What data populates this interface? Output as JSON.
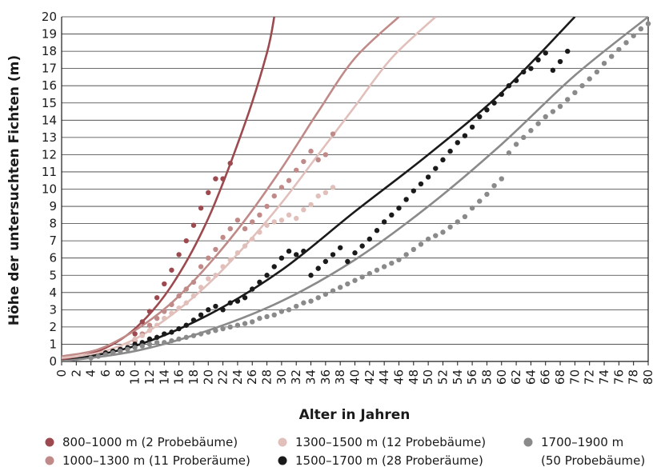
{
  "chart_data": {
    "type": "scatter",
    "xlabel": "Alter in Jahren",
    "ylabel": "Höhe der untersuchten Fichten (m)",
    "xlim": [
      0,
      80
    ],
    "ylim": [
      0,
      20
    ],
    "x_ticks": [
      "0",
      "2",
      "4",
      "6",
      "8",
      "10",
      "12",
      "14",
      "16",
      "18",
      "20",
      "22",
      "24",
      "26",
      "28",
      "30",
      "32",
      "34",
      "36",
      "38",
      "40",
      "42",
      "44",
      "46",
      "48",
      "50",
      "52",
      "54",
      "56",
      "58",
      "60",
      "62",
      "64",
      "66",
      "68",
      "70",
      "72",
      "74",
      "76",
      "78",
      "80"
    ],
    "y_ticks": [
      "0",
      "1",
      "2",
      "3",
      "4",
      "5",
      "6",
      "7",
      "8",
      "9",
      "10",
      "11",
      "12",
      "13",
      "14",
      "15",
      "16",
      "17",
      "18",
      "19",
      "20"
    ],
    "grid": "horizontal",
    "legend_position": "bottom",
    "series": [
      {
        "name": "800–1000 m (2 Probebäume)",
        "color": "#9c4a4f",
        "points": [
          [
            10,
            1.6
          ],
          [
            11,
            2.3
          ],
          [
            12,
            2.9
          ],
          [
            13,
            3.7
          ],
          [
            14,
            4.5
          ],
          [
            15,
            5.3
          ],
          [
            16,
            6.2
          ],
          [
            17,
            7.0
          ],
          [
            18,
            7.9
          ],
          [
            19,
            8.9
          ],
          [
            20,
            9.8
          ],
          [
            21,
            10.6
          ],
          [
            22,
            10.6
          ],
          [
            23,
            11.5
          ]
        ],
        "curve": [
          [
            0,
            0.1
          ],
          [
            5,
            0.6
          ],
          [
            10,
            1.9
          ],
          [
            15,
            4.4
          ],
          [
            20,
            8.3
          ],
          [
            25,
            13.8
          ],
          [
            28,
            17.9
          ],
          [
            29,
            20
          ]
        ]
      },
      {
        "name": "1000–1300 m (11 Proberäume)",
        "color": "#c08a88",
        "points": [
          [
            10,
            1.2
          ],
          [
            11,
            1.6
          ],
          [
            12,
            2.1
          ],
          [
            13,
            2.5
          ],
          [
            14,
            2.9
          ],
          [
            15,
            3.3
          ],
          [
            16,
            3.8
          ],
          [
            17,
            4.2
          ],
          [
            18,
            4.6
          ],
          [
            19,
            5.5
          ],
          [
            20,
            6.0
          ],
          [
            21,
            6.5
          ],
          [
            22,
            7.2
          ],
          [
            23,
            7.7
          ],
          [
            24,
            8.2
          ],
          [
            25,
            7.7
          ],
          [
            26,
            8.1
          ],
          [
            27,
            8.5
          ],
          [
            28,
            9.0
          ],
          [
            29,
            9.6
          ],
          [
            30,
            10.1
          ],
          [
            31,
            10.5
          ],
          [
            32,
            11.1
          ],
          [
            33,
            11.6
          ],
          [
            34,
            12.2
          ],
          [
            35,
            11.7
          ],
          [
            36,
            12.0
          ],
          [
            37,
            13.2
          ]
        ],
        "curve": [
          [
            0,
            0.3
          ],
          [
            5,
            0.7
          ],
          [
            10,
            1.8
          ],
          [
            15,
            3.4
          ],
          [
            20,
            5.6
          ],
          [
            25,
            8.2
          ],
          [
            30,
            11.2
          ],
          [
            35,
            14.5
          ],
          [
            40,
            17.6
          ],
          [
            46,
            20
          ]
        ]
      },
      {
        "name": "1300–1500 m (12 Probebäume)",
        "color": "#e1bfba",
        "points": [
          [
            8,
            0.8
          ],
          [
            9,
            1.0
          ],
          [
            10,
            1.3
          ],
          [
            11,
            1.5
          ],
          [
            12,
            1.8
          ],
          [
            13,
            2.1
          ],
          [
            14,
            2.5
          ],
          [
            15,
            2.8
          ],
          [
            16,
            3.1
          ],
          [
            17,
            3.4
          ],
          [
            18,
            3.8
          ],
          [
            19,
            4.3
          ],
          [
            20,
            4.8
          ],
          [
            21,
            5.0
          ],
          [
            22,
            5.5
          ],
          [
            23,
            5.9
          ],
          [
            24,
            6.3
          ],
          [
            25,
            6.7
          ],
          [
            26,
            7.1
          ],
          [
            27,
            7.5
          ],
          [
            28,
            7.9
          ],
          [
            29,
            8.1
          ],
          [
            30,
            8.2
          ],
          [
            31,
            8.5
          ],
          [
            32,
            8.3
          ],
          [
            33,
            8.8
          ],
          [
            34,
            9.1
          ],
          [
            35,
            9.6
          ],
          [
            36,
            9.8
          ],
          [
            37,
            10.1
          ]
        ],
        "curve": [
          [
            0,
            0.2
          ],
          [
            5,
            0.5
          ],
          [
            10,
            1.3
          ],
          [
            15,
            2.7
          ],
          [
            20,
            4.5
          ],
          [
            25,
            6.7
          ],
          [
            30,
            9.2
          ],
          [
            35,
            12.0
          ],
          [
            40,
            14.8
          ],
          [
            45,
            17.6
          ],
          [
            51,
            20
          ]
        ]
      },
      {
        "name": "1500–1700 m (28 Proberäume)",
        "color": "#1a1a1a",
        "points": [
          [
            6,
            0.5
          ],
          [
            7,
            0.6
          ],
          [
            8,
            0.7
          ],
          [
            9,
            0.8
          ],
          [
            10,
            1.0
          ],
          [
            11,
            1.1
          ],
          [
            12,
            1.3
          ],
          [
            13,
            1.4
          ],
          [
            14,
            1.6
          ],
          [
            15,
            1.7
          ],
          [
            16,
            1.9
          ],
          [
            17,
            2.1
          ],
          [
            18,
            2.4
          ],
          [
            19,
            2.7
          ],
          [
            20,
            3.0
          ],
          [
            21,
            3.2
          ],
          [
            22,
            3.0
          ],
          [
            23,
            3.4
          ],
          [
            24,
            3.5
          ],
          [
            25,
            3.7
          ],
          [
            26,
            4.2
          ],
          [
            27,
            4.6
          ],
          [
            28,
            5.0
          ],
          [
            29,
            5.5
          ],
          [
            30,
            6.0
          ],
          [
            31,
            6.4
          ],
          [
            32,
            6.2
          ],
          [
            33,
            6.4
          ],
          [
            34,
            5.0
          ],
          [
            35,
            5.4
          ],
          [
            36,
            5.8
          ],
          [
            37,
            6.2
          ],
          [
            38,
            6.6
          ],
          [
            39,
            5.8
          ],
          [
            40,
            6.3
          ],
          [
            41,
            6.7
          ],
          [
            42,
            7.1
          ],
          [
            43,
            7.6
          ],
          [
            44,
            8.1
          ],
          [
            45,
            8.5
          ],
          [
            46,
            8.9
          ],
          [
            47,
            9.4
          ],
          [
            48,
            9.9
          ],
          [
            49,
            10.3
          ],
          [
            50,
            10.7
          ],
          [
            51,
            11.2
          ],
          [
            52,
            11.7
          ],
          [
            53,
            12.2
          ],
          [
            54,
            12.7
          ],
          [
            55,
            13.1
          ],
          [
            56,
            13.6
          ],
          [
            57,
            14.2
          ],
          [
            58,
            14.6
          ],
          [
            59,
            15.0
          ],
          [
            60,
            15.5
          ],
          [
            61,
            16.0
          ],
          [
            62,
            16.3
          ],
          [
            63,
            16.8
          ],
          [
            64,
            17.0
          ],
          [
            65,
            17.5
          ],
          [
            66,
            17.9
          ],
          [
            67,
            16.9
          ],
          [
            68,
            17.4
          ],
          [
            69,
            18.0
          ]
        ],
        "curve": [
          [
            0,
            0.0
          ],
          [
            10,
            0.9
          ],
          [
            20,
            2.7
          ],
          [
            30,
            5.3
          ],
          [
            40,
            8.7
          ],
          [
            50,
            12.0
          ],
          [
            60,
            15.6
          ],
          [
            70,
            20
          ]
        ]
      },
      {
        "name": "1700–1900 m",
        "name_line2": "(50 Probebäume)",
        "color": "#8a8a8a",
        "points": [
          [
            4,
            0.2
          ],
          [
            5,
            0.3
          ],
          [
            6,
            0.4
          ],
          [
            7,
            0.5
          ],
          [
            8,
            0.6
          ],
          [
            9,
            0.7
          ],
          [
            10,
            0.8
          ],
          [
            11,
            0.9
          ],
          [
            12,
            1.0
          ],
          [
            13,
            1.1
          ],
          [
            14,
            1.1
          ],
          [
            15,
            1.2
          ],
          [
            16,
            1.3
          ],
          [
            17,
            1.4
          ],
          [
            18,
            1.5
          ],
          [
            19,
            1.6
          ],
          [
            20,
            1.7
          ],
          [
            21,
            1.8
          ],
          [
            22,
            1.9
          ],
          [
            23,
            2.0
          ],
          [
            24,
            2.1
          ],
          [
            25,
            2.2
          ],
          [
            26,
            2.3
          ],
          [
            27,
            2.5
          ],
          [
            28,
            2.6
          ],
          [
            29,
            2.7
          ],
          [
            30,
            2.9
          ],
          [
            31,
            3.0
          ],
          [
            32,
            3.2
          ],
          [
            33,
            3.4
          ],
          [
            34,
            3.5
          ],
          [
            35,
            3.7
          ],
          [
            36,
            3.9
          ],
          [
            37,
            4.1
          ],
          [
            38,
            4.3
          ],
          [
            39,
            4.5
          ],
          [
            40,
            4.7
          ],
          [
            41,
            4.9
          ],
          [
            42,
            5.1
          ],
          [
            43,
            5.3
          ],
          [
            44,
            5.5
          ],
          [
            45,
            5.7
          ],
          [
            46,
            5.9
          ],
          [
            47,
            6.2
          ],
          [
            48,
            6.5
          ],
          [
            49,
            6.8
          ],
          [
            50,
            7.1
          ],
          [
            51,
            7.3
          ],
          [
            52,
            7.5
          ],
          [
            53,
            7.8
          ],
          [
            54,
            8.1
          ],
          [
            55,
            8.4
          ],
          [
            56,
            8.9
          ],
          [
            57,
            9.3
          ],
          [
            58,
            9.7
          ],
          [
            59,
            10.2
          ],
          [
            60,
            10.6
          ],
          [
            61,
            12.1
          ],
          [
            62,
            12.6
          ],
          [
            63,
            13.0
          ],
          [
            64,
            13.4
          ],
          [
            65,
            13.8
          ],
          [
            66,
            14.2
          ],
          [
            67,
            14.5
          ],
          [
            68,
            14.8
          ],
          [
            69,
            15.2
          ],
          [
            70,
            15.6
          ],
          [
            71,
            16.0
          ],
          [
            72,
            16.4
          ],
          [
            73,
            16.8
          ],
          [
            74,
            17.3
          ],
          [
            75,
            17.7
          ],
          [
            76,
            18.1
          ],
          [
            77,
            18.5
          ],
          [
            78,
            18.9
          ],
          [
            79,
            19.3
          ],
          [
            80,
            19.6
          ]
        ],
        "curve": [
          [
            0,
            0.0
          ],
          [
            10,
            0.6
          ],
          [
            20,
            1.8
          ],
          [
            30,
            3.5
          ],
          [
            40,
            5.9
          ],
          [
            50,
            9.0
          ],
          [
            60,
            12.6
          ],
          [
            70,
            16.6
          ],
          [
            80,
            20
          ]
        ]
      }
    ]
  }
}
